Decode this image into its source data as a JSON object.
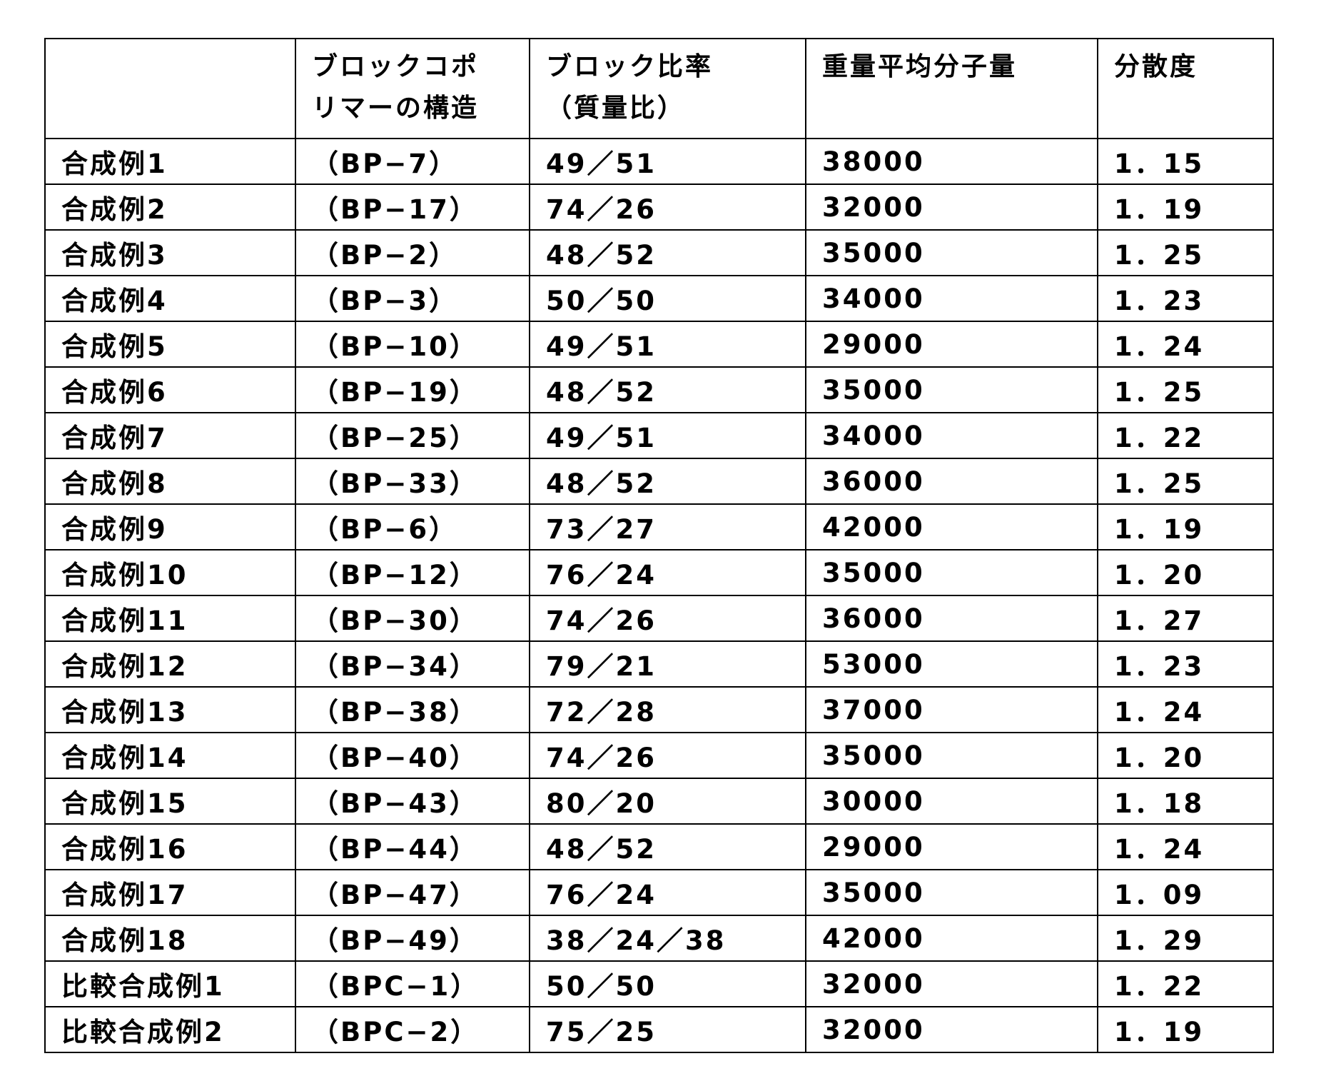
{
  "table": {
    "headers": [
      "",
      "ブロックコポリマーの構造",
      "ブロック比率（質量比）",
      "重量平均分子量",
      "分散度"
    ],
    "header_lines": [
      [
        ""
      ],
      [
        "ブロックコポ",
        "リマーの構造"
      ],
      [
        "ブロック比率",
        "（質量比）"
      ],
      [
        "重量平均分子量"
      ],
      [
        "分散度"
      ]
    ],
    "rows": [
      [
        "合成例1",
        "（BP−7）",
        "49／51",
        "38000",
        "1．15"
      ],
      [
        "合成例2",
        "（BP−17）",
        "74／26",
        "32000",
        "1．19"
      ],
      [
        "合成例3",
        "（BP−2）",
        "48／52",
        "35000",
        "1．25"
      ],
      [
        "合成例4",
        "（BP−3）",
        "50／50",
        "34000",
        "1．23"
      ],
      [
        "合成例5",
        "（BP−10）",
        "49／51",
        "29000",
        "1．24"
      ],
      [
        "合成例6",
        "（BP−19）",
        "48／52",
        "35000",
        "1．25"
      ],
      [
        "合成例7",
        "（BP−25）",
        "49／51",
        "34000",
        "1．22"
      ],
      [
        "合成例8",
        "（BP−33）",
        "48／52",
        "36000",
        "1．25"
      ],
      [
        "合成例9",
        "（BP−6）",
        "73／27",
        "42000",
        "1．19"
      ],
      [
        "合成例10",
        "（BP−12）",
        "76／24",
        "35000",
        "1．20"
      ],
      [
        "合成例11",
        "（BP−30）",
        "74／26",
        "36000",
        "1．27"
      ],
      [
        "合成例12",
        "（BP−34）",
        "79／21",
        "53000",
        "1．23"
      ],
      [
        "合成例13",
        "（BP−38）",
        "72／28",
        "37000",
        "1．24"
      ],
      [
        "合成例14",
        "（BP−40）",
        "74／26",
        "35000",
        "1．20"
      ],
      [
        "合成例15",
        "（BP−43）",
        "80／20",
        "30000",
        "1．18"
      ],
      [
        "合成例16",
        "（BP−44）",
        "48／52",
        "29000",
        "1．24"
      ],
      [
        "合成例17",
        "（BP−47）",
        "76／24",
        "35000",
        "1．09"
      ],
      [
        "合成例18",
        "（BP−49）",
        "38／24／38",
        "42000",
        "1．29"
      ],
      [
        "比較合成例1",
        "（BPC−1）",
        "50／50",
        "32000",
        "1．22"
      ],
      [
        "比較合成例2",
        "（BPC−2）",
        "75／25",
        "32000",
        "1．19"
      ]
    ]
  }
}
